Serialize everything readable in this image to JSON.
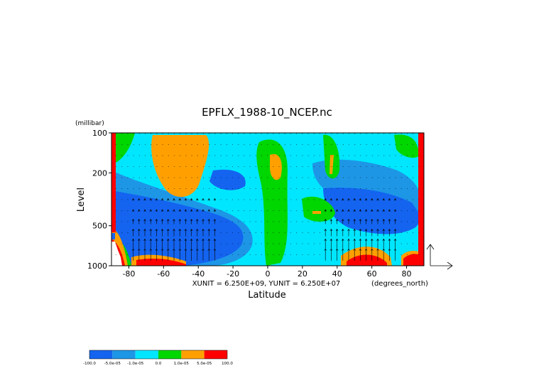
{
  "chart_data": {
    "type": "heatmap",
    "title": "EPFLX_1988-10_NCEP.nc",
    "xlabel": "Latitude",
    "ylabel": "Level",
    "x_units": "(degrees_north)",
    "y_units": "(millibar)",
    "xlim": [
      -90,
      90
    ],
    "ylim": [
      1000,
      100
    ],
    "y_scale": "log",
    "x_ticks": [
      "-80",
      "-60",
      "-40",
      "-20",
      "0",
      "20",
      "40",
      "60",
      "80"
    ],
    "y_ticks": [
      "100",
      "200",
      "500",
      "1000"
    ],
    "unit_note": "XUNIT = 6.250E+09, YUNIT = 6.250E+07",
    "colorbar": {
      "labels": [
        "-100.0",
        "-5.0e-05",
        "-1.0e-05",
        "0.0",
        "1.0e-05",
        "5.0e-05",
        "100.0"
      ],
      "colors": [
        "#1464f0",
        "#1e96e6",
        "#00e6ff",
        "#00d600",
        "#ffa000",
        "#ff0000"
      ]
    },
    "grid": false,
    "legend": "colorbar-bottom-left"
  }
}
